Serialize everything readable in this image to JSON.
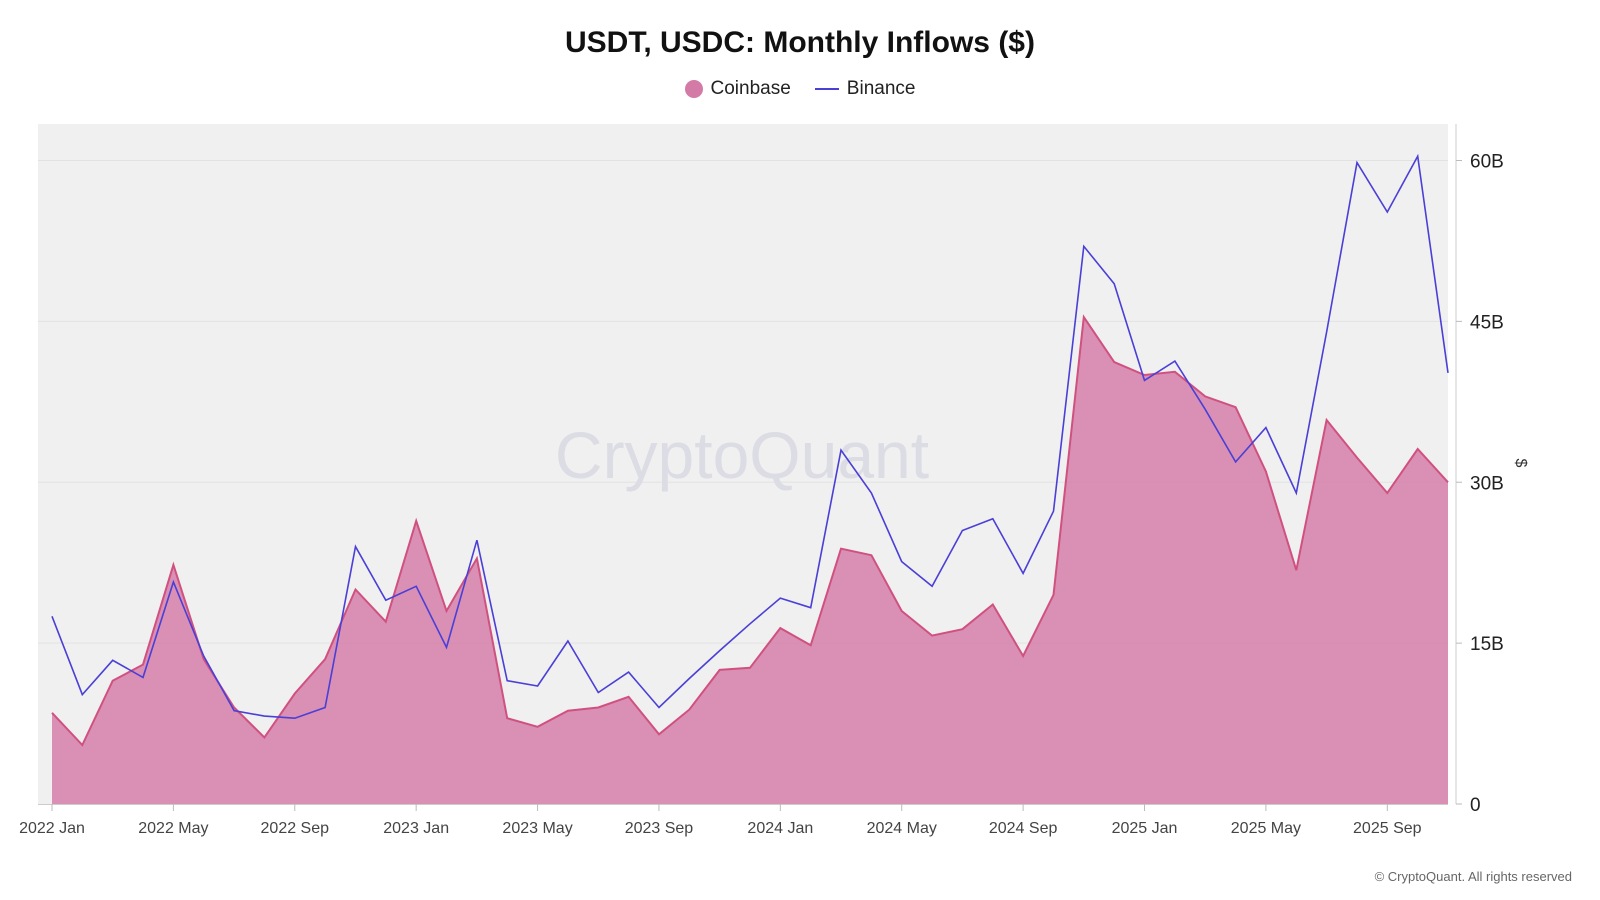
{
  "title": "USDT, USDC: Monthly Inflows ($)",
  "watermark": "CryptoQuant",
  "footer": "© CryptoQuant. All rights reserved",
  "colors": {
    "coinbase_line": "#d0517f",
    "coinbase_fill": "#d37aa6",
    "binance_line": "#4a3fd6",
    "plot_bg": "#f0f0f0",
    "grid": "#e2e2e2",
    "watermark": "#dcdce4"
  },
  "chart_data": {
    "type": "area",
    "y_axis_label": "$",
    "y_axis_position": "right",
    "ylim": [
      0,
      63
    ],
    "y_ticks": [
      {
        "value": 0,
        "label": "0"
      },
      {
        "value": 15,
        "label": "15B"
      },
      {
        "value": 30,
        "label": "30B"
      },
      {
        "value": 45,
        "label": "45B"
      },
      {
        "value": 60,
        "label": "60B"
      }
    ],
    "x_tick_labels": [
      {
        "index": 0,
        "label": "2022 Jan"
      },
      {
        "index": 4,
        "label": "2022 May"
      },
      {
        "index": 8,
        "label": "2022 Sep"
      },
      {
        "index": 12,
        "label": "2023 Jan"
      },
      {
        "index": 16,
        "label": "2023 May"
      },
      {
        "index": 20,
        "label": "2023 Sep"
      },
      {
        "index": 24,
        "label": "2024 Jan"
      },
      {
        "index": 28,
        "label": "2024 May"
      },
      {
        "index": 32,
        "label": "2024 Sep"
      },
      {
        "index": 36,
        "label": "2025 Jan"
      },
      {
        "index": 40,
        "label": "2025 May"
      },
      {
        "index": 44,
        "label": "2025 Sep"
      }
    ],
    "x": [
      "2022-01",
      "2022-02",
      "2022-03",
      "2022-04",
      "2022-05",
      "2022-06",
      "2022-07",
      "2022-08",
      "2022-09",
      "2022-10",
      "2022-11",
      "2022-12",
      "2023-01",
      "2023-02",
      "2023-03",
      "2023-04",
      "2023-05",
      "2023-06",
      "2023-07",
      "2023-08",
      "2023-09",
      "2023-10",
      "2023-11",
      "2023-12",
      "2024-01",
      "2024-02",
      "2024-03",
      "2024-04",
      "2024-05",
      "2024-06",
      "2024-07",
      "2024-08",
      "2024-09",
      "2024-10",
      "2024-11",
      "2024-12",
      "2025-01",
      "2025-02",
      "2025-03",
      "2025-04",
      "2025-05",
      "2025-06",
      "2025-07",
      "2025-08",
      "2025-09",
      "2025-10",
      "2025-11"
    ],
    "series": [
      {
        "name": "Coinbase",
        "style": "area",
        "unit": "B",
        "values": [
          8.5,
          5.5,
          11.5,
          13.0,
          22.3,
          13.5,
          9.0,
          6.2,
          10.3,
          13.5,
          20.0,
          17.0,
          26.4,
          18.0,
          22.9,
          8.0,
          7.2,
          8.7,
          9.0,
          10.0,
          6.5,
          8.8,
          12.5,
          12.7,
          16.4,
          14.8,
          23.8,
          23.2,
          18.0,
          15.7,
          16.3,
          18.6,
          13.8,
          19.5,
          45.4,
          41.2,
          40.0,
          40.3,
          38.0,
          37.0,
          31.0,
          21.8,
          35.8,
          32.3,
          29.0,
          33.1,
          30.0
        ]
      },
      {
        "name": "Binance",
        "style": "line",
        "unit": "B",
        "values": [
          17.5,
          10.2,
          13.4,
          11.8,
          20.7,
          13.8,
          8.7,
          8.2,
          8.0,
          9.0,
          24.0,
          19.0,
          20.3,
          14.6,
          24.6,
          11.5,
          11.0,
          15.2,
          10.4,
          12.3,
          9.0,
          11.7,
          14.3,
          16.8,
          19.2,
          18.3,
          33.0,
          29.0,
          22.6,
          20.3,
          25.5,
          26.6,
          21.5,
          27.3,
          52.0,
          48.5,
          39.5,
          41.3,
          36.8,
          31.9,
          35.1,
          29.0,
          44.0,
          59.8,
          55.2,
          60.4,
          40.2
        ]
      }
    ]
  }
}
